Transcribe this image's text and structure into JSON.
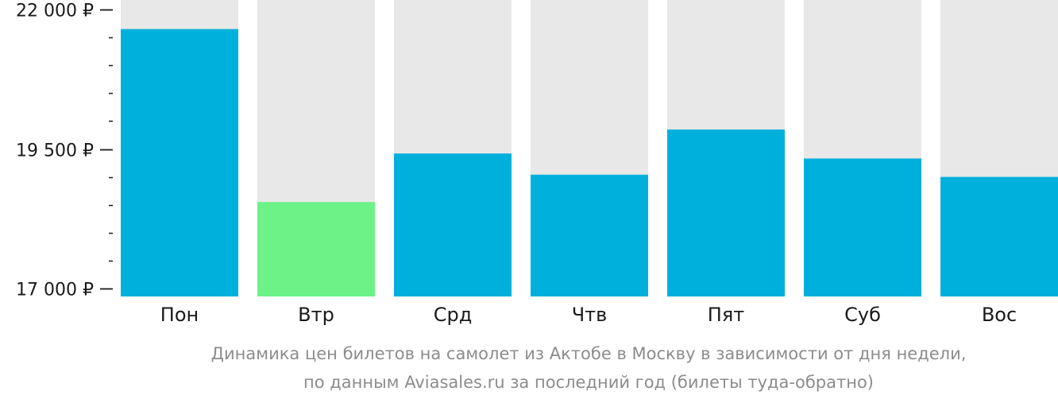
{
  "chart_data": {
    "type": "bar",
    "categories": [
      "Пон",
      "Втр",
      "Срд",
      "Чтв",
      "Пят",
      "Суб",
      "Вос"
    ],
    "values": [
      21650,
      18550,
      19420,
      19040,
      19850,
      19330,
      19000
    ],
    "ylim": [
      17000,
      22000
    ],
    "yticks": [
      {
        "value": 22000,
        "label": "22 000 ₽"
      },
      {
        "value": 19500,
        "label": "19 500 ₽"
      },
      {
        "value": 17000,
        "label": "17 000 ₽"
      }
    ],
    "minor_tick_step": 500,
    "highlight_index": 1,
    "colors": {
      "bar": "#00b0dc",
      "highlight": "#6cf287",
      "track": "#e8e8e8",
      "axis": "#1a1a1a"
    },
    "caption": [
      "Динамика цен билетов на самолет из Актобе в Москву в зависимости от дня недели,",
      "по данным Aviasales.ru за последний год (билеты туда-обратно)"
    ]
  }
}
